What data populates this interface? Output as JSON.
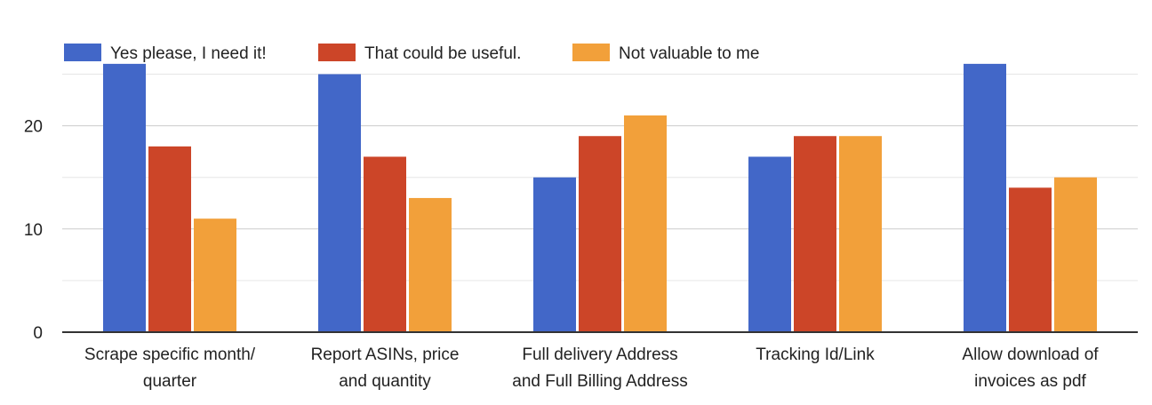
{
  "chart_data": {
    "type": "bar",
    "categories": [
      [
        "Scrape specific month/",
        "quarter"
      ],
      [
        "Report ASINs, price",
        "and quantity"
      ],
      [
        "Full delivery Address",
        "and Full Billing Address"
      ],
      [
        "Tracking Id/Link"
      ],
      [
        "Allow download of",
        "invoices as pdf"
      ]
    ],
    "series": [
      {
        "name": "Yes please, I need it!",
        "color": "#4267C8",
        "values": [
          26,
          25,
          15,
          17,
          26
        ]
      },
      {
        "name": "That could be useful.",
        "color": "#CC4528",
        "values": [
          18,
          17,
          19,
          19,
          14
        ]
      },
      {
        "name": "Not valuable to me",
        "color": "#F2A03A",
        "values": [
          11,
          13,
          21,
          19,
          15
        ]
      }
    ],
    "yticks": [
      0,
      10,
      20
    ],
    "ylim": [
      0,
      26
    ],
    "grid": true,
    "legend_position": "top-left"
  }
}
